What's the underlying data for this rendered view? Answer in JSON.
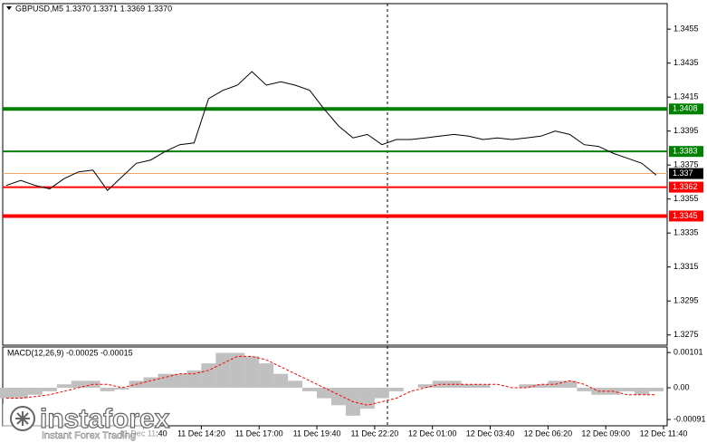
{
  "header": "GBPUSD,M5  1.3370 1.3371 1.3369 1.3370",
  "brand": {
    "name": "instaforex",
    "tagline": "Instant Forex Trading"
  },
  "chart_data": [
    {
      "type": "line",
      "color": "#000000",
      "x": [
        "11 Dec 05:20",
        "11 Dec 06:00",
        "11 Dec 06:40",
        "11 Dec 07:20",
        "11 Dec 08:00",
        "11 Dec 08:40",
        "11 Dec 09:20",
        "11 Dec 10:00",
        "11 Dec 10:40",
        "11 Dec 11:20",
        "11 Dec 12:00",
        "11 Dec 12:40",
        "11 Dec 13:20",
        "11 Dec 14:00",
        "11 Dec 14:40",
        "11 Dec 15:20",
        "11 Dec 16:00",
        "11 Dec 16:40",
        "11 Dec 17:20",
        "11 Dec 18:00",
        "11 Dec 18:40",
        "11 Dec 19:20",
        "11 Dec 20:00",
        "11 Dec 20:40",
        "11 Dec 21:20",
        "11 Dec 22:00",
        "11 Dec 22:40",
        "11 Dec 23:20",
        "12 Dec 00:00",
        "12 Dec 00:40",
        "12 Dec 01:20",
        "12 Dec 02:00",
        "12 Dec 02:40",
        "12 Dec 03:20",
        "12 Dec 04:00",
        "12 Dec 04:40",
        "12 Dec 05:20",
        "12 Dec 06:00",
        "12 Dec 06:40",
        "12 Dec 07:20",
        "12 Dec 08:00",
        "12 Dec 08:40",
        "12 Dec 09:20",
        "12 Dec 10:00",
        "12 Dec 10:40",
        "12 Dec 11:20"
      ],
      "values": [
        1.3363,
        1.3366,
        1.3363,
        1.3361,
        1.3367,
        1.3371,
        1.3372,
        1.336,
        1.3368,
        1.3376,
        1.3378,
        1.3383,
        1.3387,
        1.3388,
        1.3414,
        1.3419,
        1.3422,
        1.343,
        1.3422,
        1.3424,
        1.3422,
        1.3419,
        1.3408,
        1.3398,
        1.3391,
        1.3393,
        1.3387,
        1.339,
        1.339,
        1.3391,
        1.3392,
        1.3393,
        1.3392,
        1.339,
        1.3391,
        1.339,
        1.3391,
        1.3392,
        1.3395,
        1.3393,
        1.3387,
        1.3386,
        1.3382,
        1.3379,
        1.3376,
        1.3369
      ],
      "xlim": [
        "11 Dec 05:10",
        "12 Dec 11:50"
      ],
      "xticks": [
        "11 Dec 11:40",
        "11 Dec 14:20",
        "11 Dec 17:00",
        "11 Dec 19:40",
        "11 Dec 22:20",
        "12 Dec 01:00",
        "12 Dec 03:40",
        "12 Dec 06:20",
        "12 Dec 09:00",
        "12 Dec 11:40"
      ],
      "ylim": [
        1.3269,
        1.347
      ],
      "yticks": [
        1.3455,
        1.3435,
        1.3415,
        1.3395,
        1.3375,
        1.3355,
        1.3335,
        1.3315,
        1.3295,
        1.3275
      ],
      "levels": [
        {
          "value": 1.3408,
          "color": "#008000"
        },
        {
          "value": 1.3383,
          "color": "#008000"
        },
        {
          "value": 1.3362,
          "color": "#ff0000"
        },
        {
          "value": 1.3345,
          "color": "#ff0000"
        }
      ],
      "current_price": 1.337
    },
    {
      "type": "macd",
      "title": "MACD(12,26,9) -0.00025 -0.00015",
      "x": [
        "11 Dec 05:20",
        "11 Dec 06:00",
        "11 Dec 06:40",
        "11 Dec 07:20",
        "11 Dec 08:00",
        "11 Dec 08:40",
        "11 Dec 09:20",
        "11 Dec 10:00",
        "11 Dec 10:40",
        "11 Dec 11:20",
        "11 Dec 12:00",
        "11 Dec 12:40",
        "11 Dec 13:20",
        "11 Dec 14:00",
        "11 Dec 14:40",
        "11 Dec 15:20",
        "11 Dec 16:00",
        "11 Dec 16:40",
        "11 Dec 17:20",
        "11 Dec 18:00",
        "11 Dec 18:40",
        "11 Dec 19:20",
        "11 Dec 20:00",
        "11 Dec 20:40",
        "11 Dec 21:20",
        "11 Dec 22:00",
        "11 Dec 22:40",
        "11 Dec 23:20",
        "12 Dec 00:00",
        "12 Dec 00:40",
        "12 Dec 01:20",
        "12 Dec 02:00",
        "12 Dec 02:40",
        "12 Dec 03:20",
        "12 Dec 04:00",
        "12 Dec 04:40",
        "12 Dec 05:20",
        "12 Dec 06:00",
        "12 Dec 06:40",
        "12 Dec 07:20",
        "12 Dec 08:00",
        "12 Dec 08:40",
        "12 Dec 09:20",
        "12 Dec 10:00",
        "12 Dec 10:40",
        "12 Dec 11:20"
      ],
      "series": [
        {
          "color": "#c0c0c0",
          "values": [
            -0.0003,
            -0.0003,
            -0.0002,
            -0.0001,
            0.0001,
            0.0002,
            0.0002,
            -0.0001,
            -5e-05,
            0.0002,
            0.0003,
            0.0004,
            0.0004,
            0.0005,
            0.0007,
            0.001,
            0.001,
            0.0009,
            0.0007,
            0.0004,
            0.0002,
            -0.0001,
            -0.0003,
            -0.0005,
            -0.0008,
            -0.0006,
            -0.0003,
            -0.0001,
            0.0,
            0.0001,
            0.0002,
            0.0002,
            0.0001,
            0.0001,
            0.0,
            0.0,
            0.0001,
            0.0001,
            0.0002,
            0.0002,
            -0.0001,
            -0.0002,
            -0.0002,
            -0.0001,
            -0.0002,
            -0.0001
          ]
        },
        {
          "color": "#ff0000",
          "values": [
            -0.0003,
            -0.0003,
            -0.00025,
            -0.0002,
            -0.0001,
            0.0,
            0.0001,
            0.0001,
            0.0,
            0.0001,
            0.0002,
            0.0003,
            0.0004,
            0.0004,
            0.0005,
            0.0007,
            0.0009,
            0.0009,
            0.0008,
            0.0006,
            0.0004,
            0.0002,
            0.0,
            -0.0002,
            -0.0004,
            -0.0005,
            -0.0004,
            -0.0003,
            -0.0001,
            0.0,
            0.0001,
            0.0001,
            0.0001,
            0.0001,
            0.0001,
            0.0,
            0.0,
            0.0001,
            0.0001,
            0.0002,
            0.0001,
            -0.0001,
            -0.0001,
            -0.0002,
            -0.0002,
            -0.0002
          ]
        }
      ],
      "xlim": [
        "11 Dec 05:10",
        "12 Dec 11:50"
      ],
      "ylim": [
        -0.00109,
        0.00117
      ],
      "yticks": [
        0.00101,
        {
          "value": 0,
          "label": "0.00"
        },
        -0.00091
      ]
    }
  ]
}
